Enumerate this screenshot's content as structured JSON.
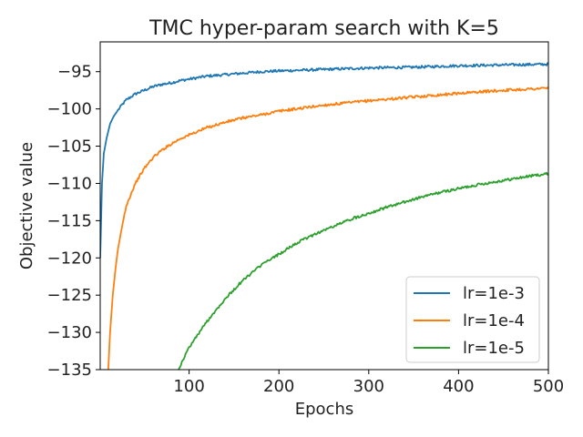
{
  "chart_data": {
    "type": "line",
    "title": "TMC hyper-param search with K=5",
    "xlabel": "Epochs",
    "ylabel": "Objective value",
    "xlim": [
      1,
      500
    ],
    "ylim": [
      -135,
      -91
    ],
    "xticks": [
      100,
      200,
      300,
      400,
      500
    ],
    "xtick_labels": [
      "100",
      "200",
      "300",
      "400",
      "500"
    ],
    "yticks": [
      -135,
      -130,
      -125,
      -120,
      -115,
      -110,
      -105,
      -100,
      -95
    ],
    "ytick_labels": [
      "−135",
      "−130",
      "−125",
      "−120",
      "−115",
      "−110",
      "−105",
      "−100",
      "−95"
    ],
    "grid": false,
    "legend_position": "lower right",
    "series": [
      {
        "name": "lr=1e-3",
        "color": "#1f77b4",
        "x": [
          1,
          3,
          5,
          8,
          12,
          16,
          20,
          25,
          30,
          40,
          50,
          60,
          70,
          80,
          90,
          100,
          120,
          140,
          160,
          180,
          200,
          250,
          300,
          350,
          400,
          450,
          500
        ],
        "y": [
          -120,
          -110,
          -106,
          -104,
          -102,
          -101,
          -100.3,
          -99.5,
          -98.8,
          -98.0,
          -97.5,
          -97.0,
          -96.7,
          -96.5,
          -96.2,
          -96.0,
          -95.6,
          -95.4,
          -95.2,
          -95.0,
          -94.9,
          -94.7,
          -94.5,
          -94.4,
          -94.2,
          -94.1,
          -94.0
        ]
      },
      {
        "name": "lr=1e-4",
        "color": "#ff7f0e",
        "x": [
          10,
          12,
          15,
          18,
          20,
          25,
          30,
          35,
          40,
          50,
          60,
          70,
          80,
          90,
          100,
          120,
          140,
          160,
          180,
          200,
          250,
          300,
          350,
          400,
          450,
          500
        ],
        "y": [
          -135,
          -130,
          -125,
          -121.5,
          -119.5,
          -116,
          -113,
          -111.5,
          -110,
          -108,
          -106.5,
          -105.5,
          -104.7,
          -104,
          -103.5,
          -102.5,
          -101.8,
          -101.2,
          -100.8,
          -100.3,
          -99.5,
          -98.9,
          -98.4,
          -97.9,
          -97.5,
          -97.2
        ]
      },
      {
        "name": "lr=1e-5",
        "color": "#2ca02c",
        "x": [
          88,
          100,
          120,
          140,
          160,
          180,
          200,
          220,
          240,
          260,
          280,
          300,
          320,
          340,
          360,
          380,
          400,
          420,
          440,
          460,
          480,
          500
        ],
        "y": [
          -135,
          -132,
          -128.5,
          -125.5,
          -123,
          -121,
          -119.5,
          -118,
          -116.8,
          -115.8,
          -114.8,
          -114.0,
          -113.2,
          -112.5,
          -111.8,
          -111.2,
          -110.7,
          -110.2,
          -109.8,
          -109.4,
          -109.0,
          -108.7
        ]
      }
    ]
  }
}
